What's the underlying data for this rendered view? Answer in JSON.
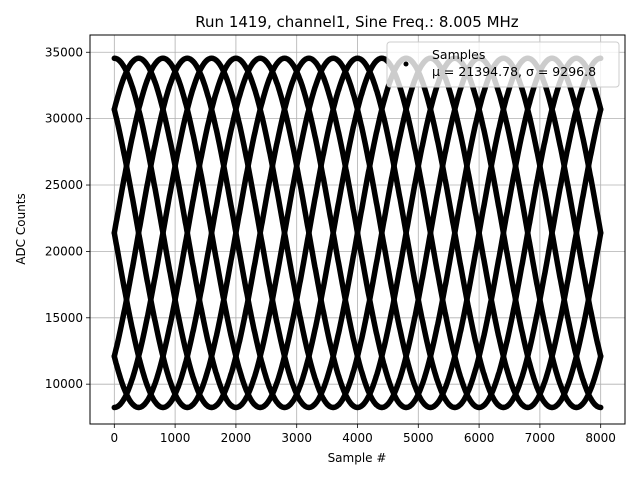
{
  "chart_data": {
    "type": "scatter",
    "title": "Run 1419, channel1, Sine Freq.: 8.005 MHz",
    "xlabel": "Sample #",
    "ylabel": "ADC Counts",
    "xlim": [
      -400,
      8400
    ],
    "ylim": [
      7000,
      36300
    ],
    "xticks": [
      0,
      1000,
      2000,
      3000,
      4000,
      5000,
      6000,
      7000,
      8000
    ],
    "yticks": [
      10000,
      15000,
      20000,
      25000,
      30000,
      35000
    ],
    "grid": true,
    "legend_position": "top-right",
    "series": [
      {
        "name": "Samples",
        "label": "μ = 21394.78, σ = 9296.8",
        "color": "#000000",
        "marker": "circle",
        "x_range": [
          0,
          8000
        ],
        "offset": 21394.78,
        "amplitude": 13150,
        "period_samples": 3200,
        "phase_offsets_deg": [
          90,
          225,
          180,
          315,
          0,
          135,
          270,
          45
        ]
      }
    ]
  }
}
